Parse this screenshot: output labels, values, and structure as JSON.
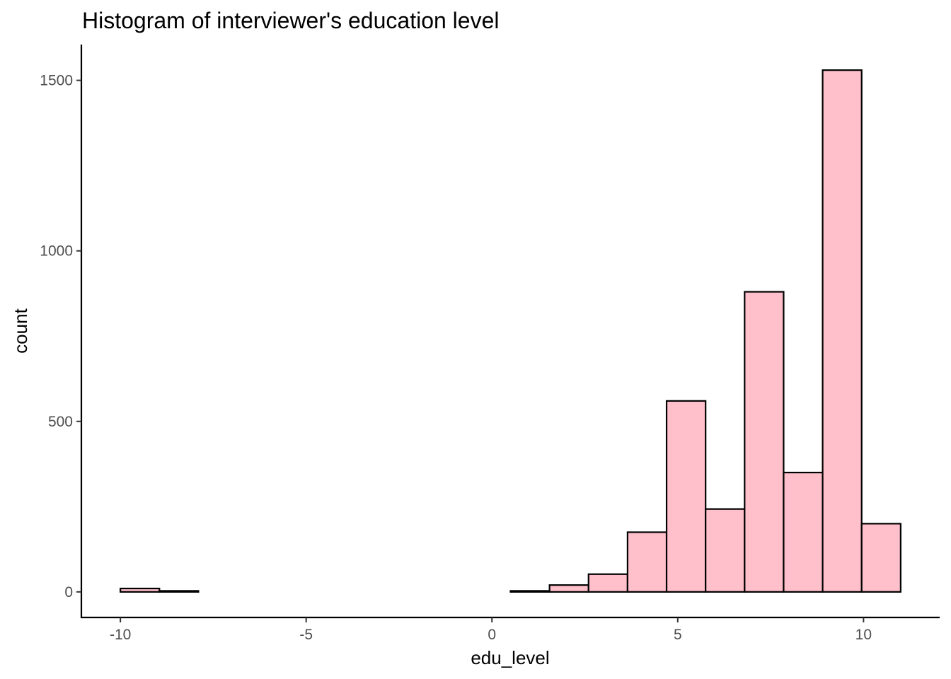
{
  "chart_data": {
    "type": "bar",
    "title": "Histogram of interviewer's education level",
    "xlabel": "edu_level",
    "ylabel": "count",
    "xlim": [
      -11.05,
      12.05
    ],
    "ylim": [
      -75,
      1605
    ],
    "x_ticks": [
      -10,
      -5,
      0,
      5,
      10
    ],
    "x_tick_labels": [
      "-10",
      "-5",
      "0",
      "5",
      "10"
    ],
    "y_ticks": [
      0,
      500,
      1000,
      1500
    ],
    "y_tick_labels": [
      "0",
      "500",
      "1000",
      "1500"
    ],
    "bin_width": 1.05,
    "bins": [
      {
        "x0": -10.0,
        "x1": -8.95,
        "count": 10
      },
      {
        "x0": -8.95,
        "x1": -7.9,
        "count": 3
      },
      {
        "x0": -7.9,
        "x1": -6.85,
        "count": 0
      },
      {
        "x0": -6.85,
        "x1": -5.8,
        "count": 0
      },
      {
        "x0": -5.8,
        "x1": -4.75,
        "count": 0
      },
      {
        "x0": -4.75,
        "x1": -3.7,
        "count": 0
      },
      {
        "x0": -3.7,
        "x1": -2.65,
        "count": 0
      },
      {
        "x0": -2.65,
        "x1": -1.6,
        "count": 0
      },
      {
        "x0": -1.6,
        "x1": -0.55,
        "count": 0
      },
      {
        "x0": -0.55,
        "x1": 0.5,
        "count": 0
      },
      {
        "x0": 0.5,
        "x1": 1.55,
        "count": 3
      },
      {
        "x0": 1.55,
        "x1": 2.6,
        "count": 20
      },
      {
        "x0": 2.6,
        "x1": 3.65,
        "count": 52
      },
      {
        "x0": 3.65,
        "x1": 4.7,
        "count": 175
      },
      {
        "x0": 4.7,
        "x1": 5.75,
        "count": 560
      },
      {
        "x0": 5.75,
        "x1": 6.8,
        "count": 243
      },
      {
        "x0": 6.8,
        "x1": 7.85,
        "count": 880
      },
      {
        "x0": 7.85,
        "x1": 8.9,
        "count": 350
      },
      {
        "x0": 8.9,
        "x1": 9.95,
        "count": 1530
      },
      {
        "x0": 9.95,
        "x1": 11.0,
        "count": 200
      }
    ],
    "grid": false,
    "colors": {
      "bar_fill": "#ffc0cb",
      "bar_stroke": "#000000"
    }
  }
}
